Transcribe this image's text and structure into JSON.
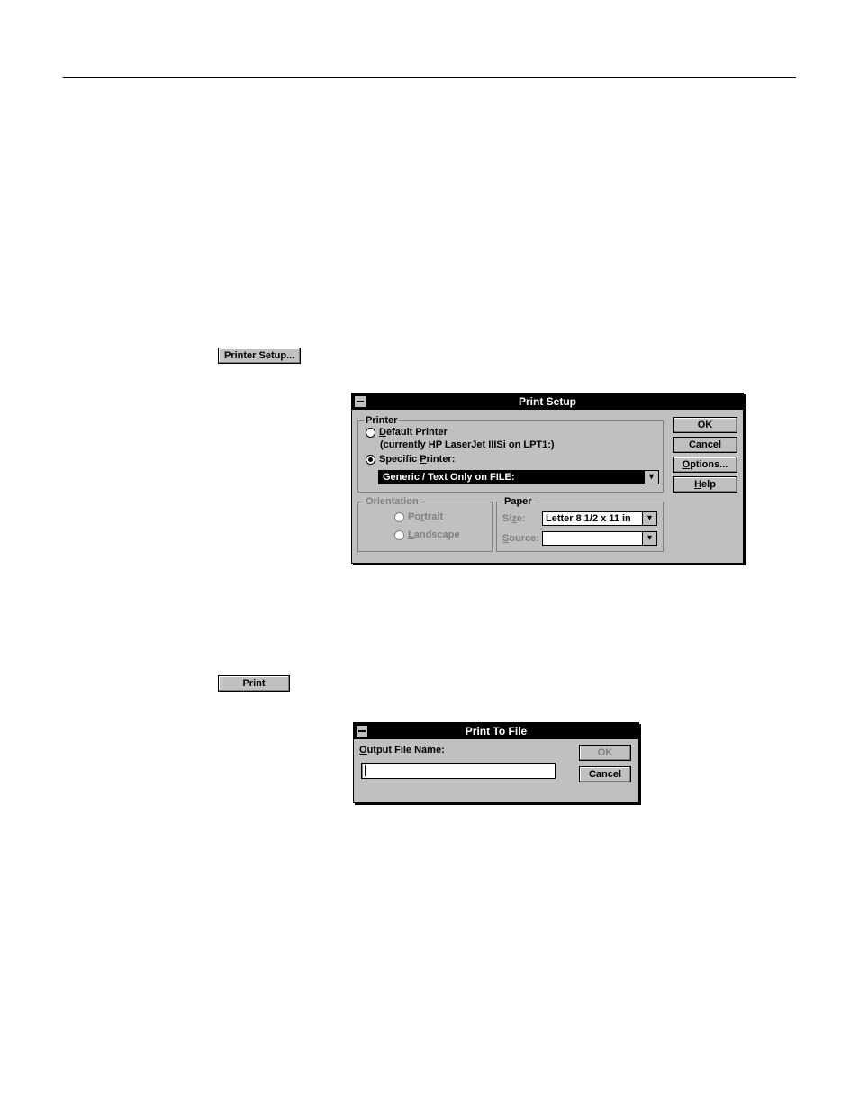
{
  "inline_buttons": {
    "printer_setup": "Printer Setup...",
    "print": "Print"
  },
  "print_setup_dialog": {
    "title": "Print Setup",
    "buttons": {
      "ok": "OK",
      "cancel": "Cancel",
      "options": "Options...",
      "help": "Help"
    },
    "printer_group": {
      "label": "Printer",
      "default_label": "Default Printer",
      "current_text": "(currently HP LaserJet IIISi on LPT1:)",
      "specific_label": "Specific Printer:",
      "specific_selected": true,
      "combo_value": "Generic / Text Only on FILE:"
    },
    "orientation_group": {
      "label": "Orientation",
      "portrait": "Portrait",
      "landscape": "Landscape",
      "enabled": false
    },
    "paper_group": {
      "label": "Paper",
      "size_label": "Size:",
      "size_value": "Letter 8 1/2 x 11 in",
      "source_label": "Source:",
      "source_value": ""
    }
  },
  "print_to_file_dialog": {
    "title": "Print To File",
    "output_label": "Output File Name:",
    "input_value": "",
    "buttons": {
      "ok": "OK",
      "cancel": "Cancel"
    }
  },
  "style": {
    "dialog_bg": "#c0c0c0",
    "titlebar_bg": "#000000",
    "titlebar_fg": "#ffffff",
    "disabled_fg": "#808080",
    "font_size_pt": 11
  }
}
